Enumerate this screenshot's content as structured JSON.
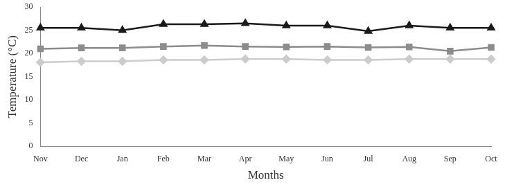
{
  "chart_data": {
    "type": "line",
    "x_label": "Months",
    "y_label": "Temperature (°C)",
    "categories": [
      "Nov",
      "Dec",
      "Jan",
      "Feb",
      "Mar",
      "Apr",
      "May",
      "Jun",
      "Jul",
      "Aug",
      "Sep",
      "Oct"
    ],
    "series": [
      {
        "color": "#1a1a1a",
        "marker": "triangle",
        "values": [
          25.5,
          25.5,
          25.0,
          26.3,
          26.3,
          26.5,
          26.0,
          26.0,
          24.8,
          26.0,
          25.5,
          25.5
        ]
      },
      {
        "color": "#8c8c8c",
        "marker": "square",
        "values": [
          21.0,
          21.2,
          21.2,
          21.5,
          21.7,
          21.5,
          21.4,
          21.5,
          21.3,
          21.4,
          20.5,
          21.3
        ]
      },
      {
        "color": "#cccccc",
        "marker": "diamond",
        "values": [
          18.1,
          18.3,
          18.3,
          18.6,
          18.6,
          18.8,
          18.8,
          18.6,
          18.6,
          18.8,
          18.8,
          18.8
        ]
      }
    ],
    "ylim": [
      0,
      30
    ],
    "yticks": [
      0,
      5,
      10,
      15,
      20,
      25,
      30
    ],
    "grid": false
  }
}
